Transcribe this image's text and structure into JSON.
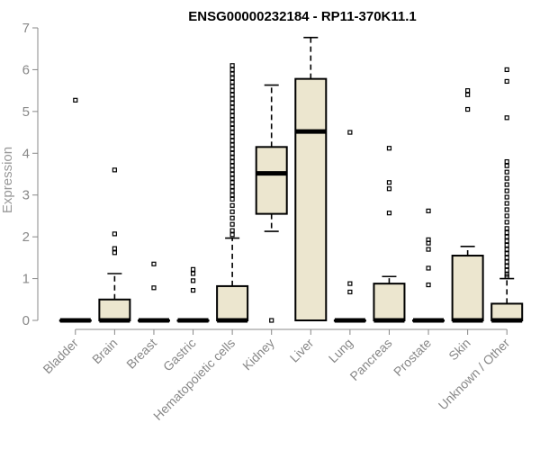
{
  "chart_data": {
    "type": "boxplot",
    "title": "ENSG00000232184 - RP11-370K11.1",
    "xlabel": "",
    "ylabel": "Expression",
    "ylim": [
      0,
      7
    ],
    "yticks": [
      0,
      1,
      2,
      3,
      4,
      5,
      6,
      7
    ],
    "categories": [
      "Bladder",
      "Brain",
      "Breast",
      "Gastric",
      "Hematopoietic cells",
      "Kidney",
      "Liver",
      "Lung",
      "Pancreas",
      "Prostate",
      "Skin",
      "Unknown / Other"
    ],
    "boxes": [
      {
        "q1": 0,
        "median": 0,
        "q3": 0,
        "whisker_low": 0,
        "whisker_high": 0,
        "outliers": [
          5.27
        ]
      },
      {
        "q1": 0,
        "median": 0,
        "q3": 0.5,
        "whisker_low": 0,
        "whisker_high": 1.12,
        "outliers": [
          1.62,
          1.72,
          2.07,
          3.6
        ]
      },
      {
        "q1": 0,
        "median": 0,
        "q3": 0,
        "whisker_low": 0,
        "whisker_high": 0,
        "outliers": [
          0.78,
          1.35
        ]
      },
      {
        "q1": 0,
        "median": 0,
        "q3": 0,
        "whisker_low": 0,
        "whisker_high": 0,
        "outliers": [
          0.72,
          0.95,
          1.12,
          1.22
        ]
      },
      {
        "q1": 0,
        "median": 0,
        "q3": 0.82,
        "whisker_low": 0,
        "whisker_high": 1.97,
        "outliers": [
          2.05,
          2.15,
          2.3,
          2.45,
          2.6,
          2.75,
          2.9,
          3.0,
          3.1,
          3.2,
          3.3,
          3.4,
          3.5,
          3.6,
          3.7,
          3.8,
          3.9,
          4.0,
          4.1,
          4.2,
          4.3,
          4.4,
          4.5,
          4.6,
          4.7,
          4.8,
          4.9,
          5.0,
          5.1,
          5.2,
          5.3,
          5.4,
          5.5,
          5.6,
          5.7,
          5.8,
          5.9,
          6.0,
          6.1
        ]
      },
      {
        "q1": 2.55,
        "median": 3.52,
        "q3": 4.15,
        "whisker_low": 2.13,
        "whisker_high": 5.63,
        "outliers": [
          0
        ]
      },
      {
        "q1": 0,
        "median": 4.52,
        "q3": 5.78,
        "whisker_low": 0,
        "whisker_high": 6.77,
        "outliers": []
      },
      {
        "q1": 0,
        "median": 0,
        "q3": 0,
        "whisker_low": 0,
        "whisker_high": 0,
        "outliers": [
          0.68,
          0.88,
          4.5
        ]
      },
      {
        "q1": 0,
        "median": 0,
        "q3": 0.88,
        "whisker_low": 0,
        "whisker_high": 1.05,
        "outliers": [
          2.57,
          3.15,
          3.3,
          4.12
        ]
      },
      {
        "q1": 0,
        "median": 0,
        "q3": 0,
        "whisker_low": 0,
        "whisker_high": 0,
        "outliers": [
          0.85,
          1.25,
          1.7,
          1.85,
          1.93,
          2.62
        ]
      },
      {
        "q1": 0,
        "median": 0,
        "q3": 1.55,
        "whisker_low": 0,
        "whisker_high": 1.77,
        "outliers": [
          5.05,
          5.4,
          5.5
        ]
      },
      {
        "q1": 0,
        "median": 0,
        "q3": 0.4,
        "whisker_low": 0,
        "whisker_high": 1.0,
        "outliers": [
          1.05,
          1.1,
          1.2,
          1.3,
          1.4,
          1.5,
          1.6,
          1.7,
          1.8,
          1.9,
          2.0,
          2.1,
          2.2,
          2.35,
          2.5,
          2.65,
          2.8,
          2.95,
          3.1,
          3.25,
          3.4,
          3.55,
          3.7,
          3.8,
          4.85,
          5.72,
          6.0
        ]
      }
    ],
    "box_color": "#ece6cf",
    "grid": false,
    "legend": "none"
  }
}
